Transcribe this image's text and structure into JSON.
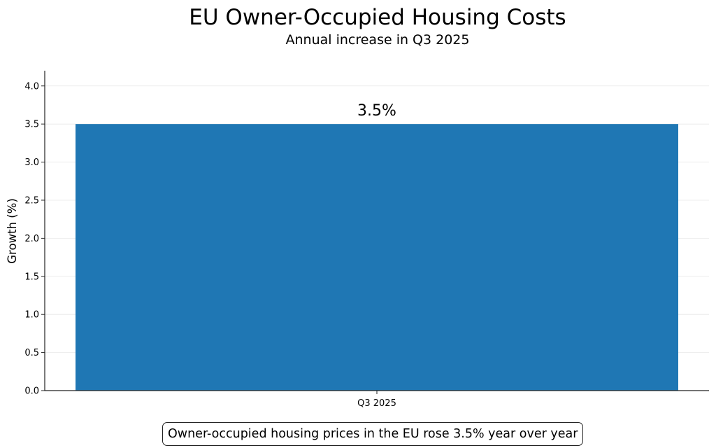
{
  "chart_data": {
    "type": "bar",
    "title": "EU Owner-Occupied Housing Costs",
    "subtitle": "Annual increase in Q3 2025",
    "xlabel": "",
    "ylabel": "Growth (%)",
    "categories": [
      "Q3 2025"
    ],
    "values": [
      3.5
    ],
    "data_labels": [
      "3.5%"
    ],
    "ylim": [
      0,
      4.2
    ],
    "yticks": [
      0.0,
      0.5,
      1.0,
      1.5,
      2.0,
      2.5,
      3.0,
      3.5,
      4.0
    ],
    "ytick_labels": [
      "0.0",
      "0.5",
      "1.0",
      "1.5",
      "2.0",
      "2.5",
      "3.0",
      "3.5",
      "4.0"
    ],
    "grid": true,
    "bar_color": "#1f77b4",
    "annotation": "Owner-occupied housing prices in the EU rose 3.5% year over year"
  }
}
